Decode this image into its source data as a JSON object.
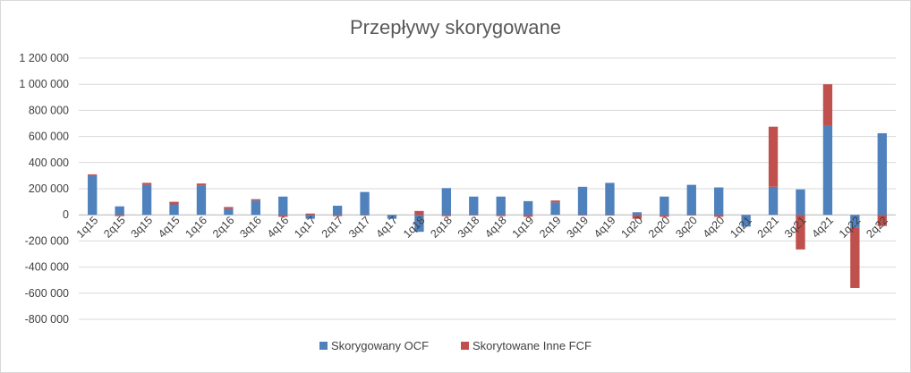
{
  "chart_data": {
    "type": "bar",
    "stacked": true,
    "title": "Przepływy skorygowane",
    "xlabel": "",
    "ylabel": "",
    "ylim": [
      -800000,
      1200000
    ],
    "y_ticks": [
      1200000,
      1000000,
      800000,
      600000,
      400000,
      200000,
      0,
      -200000,
      -400000,
      -600000,
      -800000
    ],
    "y_tick_labels": [
      "1 200 000",
      "1 000 000",
      "800 000",
      "600 000",
      "400 000",
      "200 000",
      "0",
      "-200 000",
      "-400 000",
      "-600 000",
      "-800 000"
    ],
    "grid": true,
    "legend_position": "bottom",
    "categories": [
      "1q15",
      "2q15",
      "3q15",
      "4q15",
      "1q16",
      "2q16",
      "3q16",
      "4q16",
      "1q17",
      "2q17",
      "3q17",
      "4q17",
      "1q18",
      "2q18",
      "3q18",
      "4q18",
      "1q19",
      "2q19",
      "3q19",
      "4q19",
      "1q20",
      "2q20",
      "3q20",
      "4q20",
      "1q21",
      "2q21",
      "3q21",
      "4q21",
      "1q22",
      "2q22"
    ],
    "series": [
      {
        "name": "Skorygowany OCF",
        "color": "#4f81bd",
        "values": [
          300000,
          65000,
          230000,
          80000,
          225000,
          45000,
          110000,
          140000,
          -30000,
          70000,
          175000,
          -30000,
          -130000,
          205000,
          140000,
          140000,
          105000,
          95000,
          215000,
          245000,
          20000,
          140000,
          230000,
          210000,
          -90000,
          215000,
          195000,
          680000,
          -100000,
          625000
        ]
      },
      {
        "name": "Skorytowane Inne FCF",
        "color": "#c0504d",
        "values": [
          10000,
          -10000,
          15000,
          20000,
          15000,
          15000,
          10000,
          -15000,
          10000,
          -10000,
          -5000,
          0,
          30000,
          -10000,
          -5000,
          -10000,
          -15000,
          15000,
          -5000,
          -5000,
          -30000,
          -15000,
          -5000,
          -15000,
          0,
          460000,
          -265000,
          320000,
          -460000,
          -85000
        ]
      }
    ]
  }
}
